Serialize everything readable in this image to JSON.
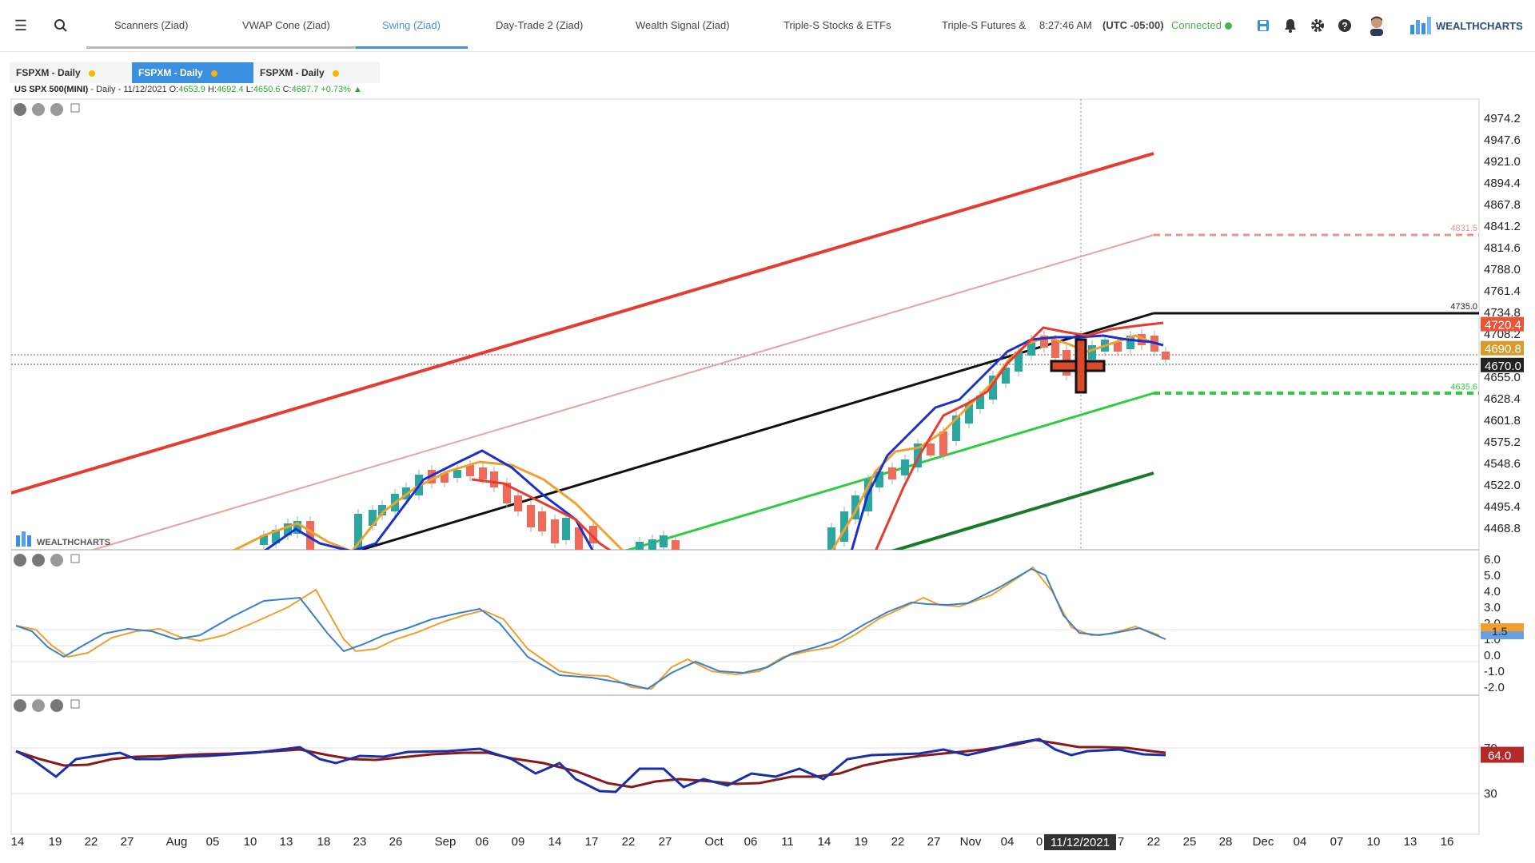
{
  "topbar": {
    "tabs": [
      {
        "label": "Scanners (Ziad)"
      },
      {
        "label": "VWAP Cone (Ziad)"
      },
      {
        "label": "Swing (Ziad)"
      },
      {
        "label": "Day-Trade 2 (Ziad)"
      },
      {
        "label": "Wealth Signal (Ziad)"
      },
      {
        "label": "Triple-S Stocks & ETFs"
      },
      {
        "label": "Triple-S Futures &"
      }
    ],
    "active_tab": "Swing (Ziad)",
    "time": "8:27:46 AM",
    "timezone": "(UTC -05:00)",
    "connection": "Connected",
    "brand": "WEALTHCHARTS",
    "icons": [
      "menu-icon",
      "search-icon",
      "save-icon",
      "bell-icon",
      "gear-icon",
      "help-icon",
      "avatar"
    ]
  },
  "chart_tabs": [
    {
      "label": "FSPXM - Daily",
      "active": false
    },
    {
      "label": "FSPXM - Daily",
      "active": true
    },
    {
      "label": "FSPXM - Daily",
      "active": false
    }
  ],
  "info": {
    "symbol": "US SPX 500(MINI)",
    "period": "- Daily - 11/12/2021",
    "open_label": "O:",
    "open": "4653.9",
    "high_label": "H:",
    "high": "4692.4",
    "low_label": "L:",
    "low": "4650.6",
    "close_label": "C:",
    "close": "4687.7",
    "change": "+0.73%"
  },
  "chart_data": {
    "type": "line",
    "price_axis": [
      "4974.2",
      "4947.6",
      "4921.0",
      "4894.4",
      "4867.8",
      "4841.2",
      "4814.6",
      "4788.0",
      "4761.4",
      "4734.8",
      "4708.2",
      "4655.0",
      "4628.4",
      "4601.8",
      "4575.2",
      "4548.6",
      "4522.0",
      "4495.4",
      "4468.8"
    ],
    "price_tags": [
      {
        "value": "4720.4",
        "color": "#e8553a"
      },
      {
        "value": "4690.8",
        "color": "#d99a2e"
      },
      {
        "value": "4670.0",
        "color": "#222222"
      }
    ],
    "level_labels": [
      {
        "value": "4831.5",
        "color": "#e8958a"
      },
      {
        "value": "4735.0",
        "color": "#222222"
      },
      {
        "value": "4635.6",
        "color": "#2ecc40"
      }
    ],
    "macd_axis": [
      "6.0",
      "5.0",
      "4.0",
      "3.0",
      "2.0",
      "1.0",
      "0.0",
      "-1.0",
      "-2.0"
    ],
    "macd_tag": "1.5",
    "rsi_axis": [
      "70",
      "30"
    ],
    "rsi_tag": "64.0",
    "x_ticks": [
      "14",
      "19",
      "22",
      "27",
      "Aug",
      "05",
      "10",
      "13",
      "18",
      "23",
      "26",
      "Sep",
      "06",
      "09",
      "14",
      "17",
      "22",
      "27",
      "Oct",
      "06",
      "11",
      "14",
      "19",
      "22",
      "27",
      "Nov",
      "04",
      "0",
      "7",
      "22",
      "25",
      "28",
      "Dec",
      "04",
      "07",
      "10",
      "13",
      "16"
    ],
    "crosshair_date": "11/12/2021",
    "watermark": "WEALTHCHARTS"
  }
}
